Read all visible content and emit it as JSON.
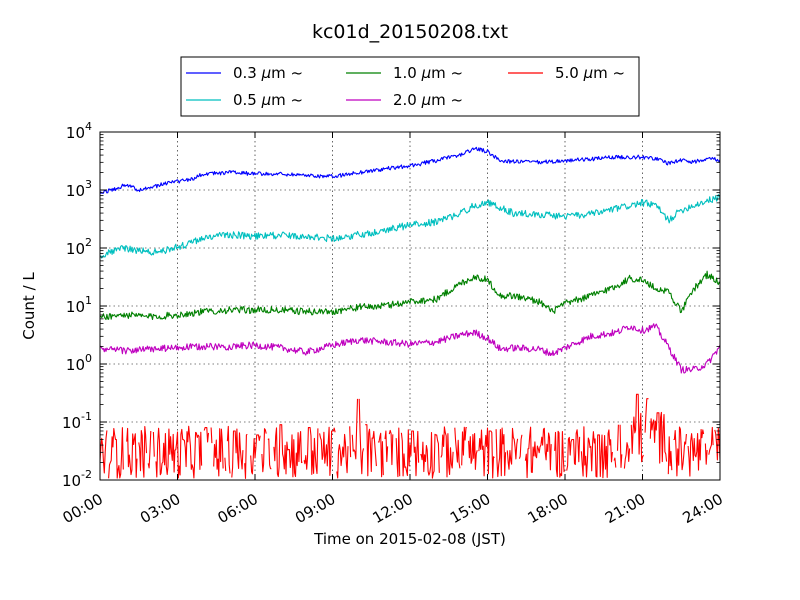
{
  "chart_data": {
    "type": "line",
    "title": "kc01d_20150208.txt",
    "xlabel": "Time on 2015-02-08 (JST)",
    "ylabel": "Count / L",
    "x_unit": "hours (JST)",
    "xlim": [
      0,
      24
    ],
    "ylim": [
      0.01,
      10000
    ],
    "yscale": "log",
    "grid": true,
    "legend_position": "top-center, above plot",
    "x_ticks": [
      0,
      3,
      6,
      9,
      12,
      15,
      18,
      21,
      24
    ],
    "x_tick_labels": [
      "00:00",
      "03:00",
      "06:00",
      "09:00",
      "12:00",
      "15:00",
      "18:00",
      "21:00",
      "24:00"
    ],
    "y_tick_labels": [
      {
        "base": "10",
        "exp": "-2"
      },
      {
        "base": "10",
        "exp": "-1"
      },
      {
        "base": "10",
        "exp": "0"
      },
      {
        "base": "10",
        "exp": "1"
      },
      {
        "base": "10",
        "exp": "2"
      },
      {
        "base": "10",
        "exp": "3"
      },
      {
        "base": "10",
        "exp": "4"
      }
    ],
    "series": [
      {
        "name": "0.3 μm ~",
        "color": "#0000ff",
        "legend_prefix": "0.3",
        "legend_unit": "μm",
        "legend_suffix": "~",
        "x": [
          0,
          0.5,
          1.0,
          1.5,
          2.0,
          2.5,
          3.0,
          3.5,
          4.0,
          5.0,
          6.0,
          7.0,
          8.0,
          9.0,
          10.0,
          11.0,
          12.0,
          13.0,
          14.0,
          14.5,
          15.0,
          15.5,
          16.0,
          17.0,
          18.0,
          19.0,
          20.0,
          21.0,
          21.5,
          22.0,
          22.5,
          23.0,
          23.5,
          24.0
        ],
        "y": [
          900,
          1000,
          1250,
          1000,
          1100,
          1300,
          1400,
          1500,
          1900,
          2000,
          1900,
          1900,
          1800,
          1700,
          2000,
          2300,
          2600,
          3200,
          4100,
          5200,
          4600,
          3200,
          3100,
          3000,
          3200,
          3400,
          3700,
          3700,
          3500,
          2900,
          3300,
          3000,
          3600,
          3300
        ]
      },
      {
        "name": "0.5 μm ~",
        "color": "#00bfbf",
        "legend_prefix": "0.5",
        "legend_unit": "μm",
        "legend_suffix": "~",
        "x": [
          0,
          0.5,
          1.0,
          1.5,
          2.0,
          2.5,
          3.0,
          3.5,
          4.0,
          4.5,
          5.0,
          6.0,
          7.0,
          8.0,
          9.0,
          10.0,
          11.0,
          12.0,
          13.0,
          14.0,
          14.5,
          15.0,
          15.5,
          16.0,
          17.0,
          18.0,
          19.0,
          20.0,
          21.0,
          21.5,
          22.0,
          22.5,
          23.0,
          23.5,
          24.0
        ],
        "y": [
          70,
          90,
          100,
          90,
          85,
          90,
          105,
          120,
          150,
          160,
          170,
          160,
          165,
          160,
          145,
          170,
          200,
          250,
          280,
          400,
          550,
          600,
          500,
          400,
          380,
          350,
          380,
          480,
          600,
          550,
          300,
          450,
          550,
          650,
          750
        ]
      },
      {
        "name": "1.0 μm ~",
        "color": "#008000",
        "legend_prefix": "1.0",
        "legend_unit": "μm",
        "legend_suffix": "~",
        "x": [
          0,
          1.0,
          2.0,
          3.0,
          4.0,
          5.0,
          6.0,
          7.0,
          8.0,
          9.0,
          10.0,
          11.0,
          12.0,
          13.0,
          13.5,
          14.0,
          14.5,
          15.0,
          15.5,
          16.0,
          17.0,
          17.5,
          18.0,
          19.0,
          20.0,
          20.5,
          21.0,
          21.5,
          22.0,
          22.5,
          23.0,
          23.5,
          24.0
        ],
        "y": [
          6.5,
          7.0,
          6.5,
          7.0,
          8.0,
          8.5,
          8.5,
          8.5,
          8.0,
          8.0,
          9.5,
          10,
          12,
          13,
          18,
          25,
          32,
          28,
          15,
          15,
          12,
          8,
          11,
          15,
          22,
          30,
          28,
          20,
          18,
          8,
          20,
          35,
          25
        ]
      },
      {
        "name": "2.0 μm ~",
        "color": "#bf00bf",
        "legend_prefix": "2.0",
        "legend_unit": "μm",
        "legend_suffix": "~",
        "x": [
          0,
          1.0,
          2.0,
          3.0,
          4.0,
          5.0,
          6.0,
          7.0,
          8.0,
          9.0,
          10.0,
          11.0,
          12.0,
          13.0,
          14.0,
          14.5,
          15.0,
          15.5,
          16.0,
          17.0,
          17.5,
          18.0,
          19.0,
          20.0,
          20.5,
          21.0,
          21.5,
          22.0,
          22.5,
          23.0,
          23.5,
          24.0
        ],
        "y": [
          1.8,
          1.7,
          1.8,
          1.9,
          2.0,
          2.0,
          2.1,
          1.9,
          1.6,
          2.1,
          2.6,
          2.4,
          2.2,
          2.4,
          3.2,
          3.5,
          2.8,
          1.8,
          1.9,
          1.8,
          1.5,
          1.9,
          3.0,
          3.5,
          4.5,
          3.8,
          4.5,
          2.0,
          0.8,
          0.8,
          1.0,
          2.0
        ]
      },
      {
        "name": "5.0 μm ~",
        "color": "#ff0000",
        "legend_prefix": "5.0",
        "legend_unit": "μm",
        "legend_suffix": "~",
        "baseline": 0.03,
        "noise_range": [
          0.012,
          0.08
        ],
        "peaks_x": [
          0.6,
          2.0,
          4.1,
          5.2,
          6.1,
          7.0,
          8.1,
          9.0,
          10.0,
          10.3,
          11.2,
          12.1,
          13.0,
          14.2,
          15.1,
          16.0,
          17.1,
          18.3,
          19.3,
          20.1,
          20.8,
          21.2,
          21.6,
          22.2,
          23.7
        ],
        "peaks_y": [
          0.05,
          0.07,
          0.08,
          0.07,
          0.06,
          0.09,
          0.08,
          0.07,
          0.25,
          0.09,
          0.05,
          0.07,
          0.06,
          0.08,
          0.07,
          0.05,
          0.04,
          0.05,
          0.06,
          0.09,
          0.18,
          0.14,
          0.08,
          0.05,
          0.04
        ]
      }
    ]
  }
}
